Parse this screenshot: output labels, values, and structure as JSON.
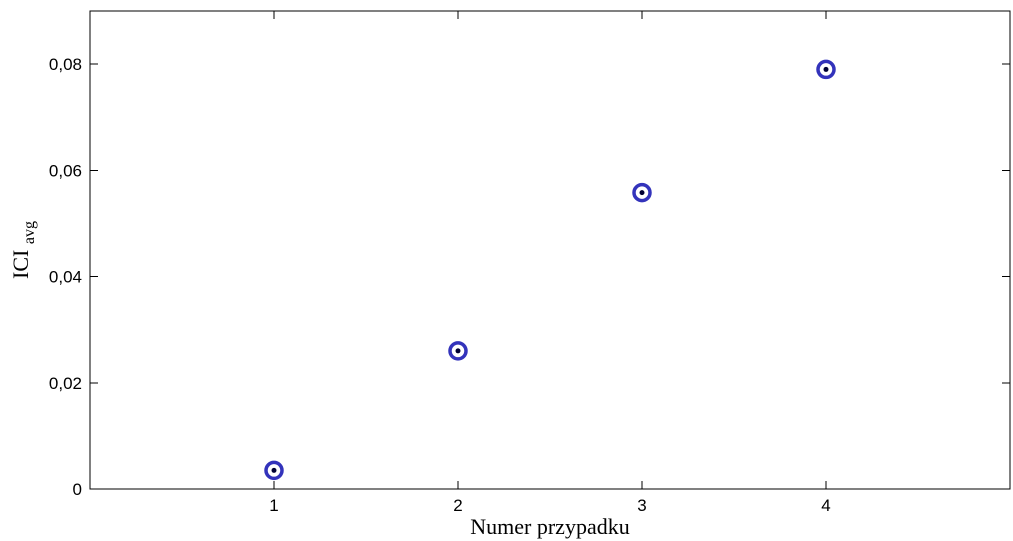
{
  "chart_data": {
    "type": "scatter",
    "title": "",
    "xlabel": "Numer przypadku",
    "ylabel": {
      "main": "ICI",
      "subscript": "avg"
    },
    "xlim": [
      0,
      5
    ],
    "ylim": [
      0,
      0.09
    ],
    "x_ticks": [
      1,
      2,
      3,
      4
    ],
    "x_tick_labels": [
      "1",
      "2",
      "3",
      "4"
    ],
    "y_ticks": [
      0,
      0.02,
      0.04,
      0.06,
      0.08
    ],
    "y_tick_labels": [
      "0",
      "0,02",
      "0,04",
      "0,06",
      "0,08"
    ],
    "grid": false,
    "series": [
      {
        "x": [
          1,
          2,
          3,
          4
        ],
        "y": [
          0.0035,
          0.026,
          0.0558,
          0.079
        ],
        "marker": "circle-with-dot",
        "color": "#3333bb"
      }
    ]
  }
}
